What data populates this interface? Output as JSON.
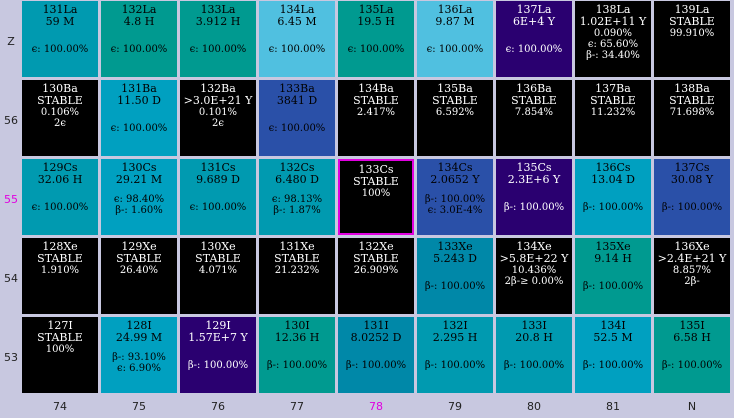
{
  "row_labels": [
    "Z",
    "56",
    "55",
    "54",
    "53"
  ],
  "row_highlight": 2,
  "col_labels": [
    "74",
    "75",
    "76",
    "77",
    "78",
    "79",
    "80",
    "81",
    "N"
  ],
  "col_highlight": 4,
  "rows": [
    [
      {
        "name": "131La",
        "half": "59 M",
        "lines": [
          "",
          "",
          "ϵ: 100.00%"
        ],
        "bg": "#009ab0",
        "fg": "lt"
      },
      {
        "name": "132La",
        "half": "4.8 H",
        "lines": [
          "",
          "",
          "ϵ: 100.00%"
        ],
        "bg": "#009a90",
        "fg": "lt"
      },
      {
        "name": "133La",
        "half": "3.912 H",
        "lines": [
          "",
          "",
          "ϵ: 100.00%"
        ],
        "bg": "#009a90",
        "fg": "lt"
      },
      {
        "name": "134La",
        "half": "6.45 M",
        "lines": [
          "",
          "",
          "ϵ: 100.00%"
        ],
        "bg": "#50c0e0",
        "fg": "lt"
      },
      {
        "name": "135La",
        "half": "19.5 H",
        "lines": [
          "",
          "",
          "ϵ: 100.00%"
        ],
        "bg": "#009a90",
        "fg": "lt"
      },
      {
        "name": "136La",
        "half": "9.87 M",
        "lines": [
          "",
          "",
          "ϵ: 100.00%"
        ],
        "bg": "#50c0e0",
        "fg": "lt"
      },
      {
        "name": "137La",
        "half": "6E+4 Y",
        "lines": [
          "",
          "",
          "ϵ: 100.00%"
        ],
        "bg": "#2a0070",
        "fg": "dk"
      },
      {
        "name": "138La",
        "half": "1.02E+11 Y",
        "lines": [
          "0.090%",
          "ϵ: 65.60%",
          "β-: 34.40%"
        ],
        "bg": "#000000",
        "fg": "dk"
      },
      {
        "name": "139La",
        "half": "STABLE",
        "lines": [
          "99.910%"
        ],
        "bg": "#000000",
        "fg": "dk"
      }
    ],
    [
      {
        "name": "130Ba",
        "half": "STABLE",
        "lines": [
          "0.106%",
          "2ϵ"
        ],
        "bg": "#000000",
        "fg": "dk"
      },
      {
        "name": "131Ba",
        "half": "11.50 D",
        "lines": [
          "",
          "",
          "ϵ: 100.00%"
        ],
        "bg": "#00a0c0",
        "fg": "lt"
      },
      {
        "name": "132Ba",
        "half": ">3.0E+21 Y",
        "lines": [
          "0.101%",
          "2ϵ"
        ],
        "bg": "#000000",
        "fg": "dk"
      },
      {
        "name": "133Ba",
        "half": "3841 D",
        "lines": [
          "",
          "",
          "ϵ: 100.00%"
        ],
        "bg": "#2a50a8",
        "fg": "lt"
      },
      {
        "name": "134Ba",
        "half": "STABLE",
        "lines": [
          "2.417%"
        ],
        "bg": "#000000",
        "fg": "dk"
      },
      {
        "name": "135Ba",
        "half": "STABLE",
        "lines": [
          "6.592%"
        ],
        "bg": "#000000",
        "fg": "dk"
      },
      {
        "name": "136Ba",
        "half": "STABLE",
        "lines": [
          "7.854%"
        ],
        "bg": "#000000",
        "fg": "dk"
      },
      {
        "name": "137Ba",
        "half": "STABLE",
        "lines": [
          "11.232%"
        ],
        "bg": "#000000",
        "fg": "dk"
      },
      {
        "name": "138Ba",
        "half": "STABLE",
        "lines": [
          "71.698%"
        ],
        "bg": "#000000",
        "fg": "dk"
      }
    ],
    [
      {
        "name": "129Cs",
        "half": "32.06 H",
        "lines": [
          "",
          "",
          "ϵ: 100.00%"
        ],
        "bg": "#009ab0",
        "fg": "lt"
      },
      {
        "name": "130Cs",
        "half": "29.21 M",
        "lines": [
          "",
          "ϵ: 98.40%",
          "β-: 1.60%"
        ],
        "bg": "#00a0c0",
        "fg": "lt"
      },
      {
        "name": "131Cs",
        "half": "9.689 D",
        "lines": [
          "",
          "",
          "ϵ: 100.00%"
        ],
        "bg": "#009ab0",
        "fg": "lt"
      },
      {
        "name": "132Cs",
        "half": "6.480 D",
        "lines": [
          "",
          "ϵ: 98.13%",
          "β-: 1.87%"
        ],
        "bg": "#009ab0",
        "fg": "lt"
      },
      {
        "name": "133Cs",
        "half": "STABLE",
        "lines": [
          "100%"
        ],
        "bg": "#000000",
        "fg": "dk",
        "sel": true
      },
      {
        "name": "134Cs",
        "half": "2.0652 Y",
        "lines": [
          "",
          "β-: 100.00%",
          "ϵ: 3.0E-4%"
        ],
        "bg": "#2a50a8",
        "fg": "lt"
      },
      {
        "name": "135Cs",
        "half": "2.3E+6 Y",
        "lines": [
          "",
          "",
          "β-: 100.00%"
        ],
        "bg": "#2a0070",
        "fg": "dk"
      },
      {
        "name": "136Cs",
        "half": "13.04 D",
        "lines": [
          "",
          "",
          "β-: 100.00%"
        ],
        "bg": "#00a0c0",
        "fg": "lt"
      },
      {
        "name": "137Cs",
        "half": "30.08 Y",
        "lines": [
          "",
          "",
          "β-: 100.00%"
        ],
        "bg": "#2a50a8",
        "fg": "lt"
      }
    ],
    [
      {
        "name": "128Xe",
        "half": "STABLE",
        "lines": [
          "1.910%"
        ],
        "bg": "#000000",
        "fg": "dk"
      },
      {
        "name": "129Xe",
        "half": "STABLE",
        "lines": [
          "26.40%"
        ],
        "bg": "#000000",
        "fg": "dk"
      },
      {
        "name": "130Xe",
        "half": "STABLE",
        "lines": [
          "4.071%"
        ],
        "bg": "#000000",
        "fg": "dk"
      },
      {
        "name": "131Xe",
        "half": "STABLE",
        "lines": [
          "21.232%"
        ],
        "bg": "#000000",
        "fg": "dk"
      },
      {
        "name": "132Xe",
        "half": "STABLE",
        "lines": [
          "26.909%"
        ],
        "bg": "#000000",
        "fg": "dk"
      },
      {
        "name": "133Xe",
        "half": "5.243 D",
        "lines": [
          "",
          "",
          "β-: 100.00%"
        ],
        "bg": "#0088a8",
        "fg": "lt"
      },
      {
        "name": "134Xe",
        "half": ">5.8E+22 Y",
        "lines": [
          "10.436%",
          "2β-≥ 0.00%"
        ],
        "bg": "#000000",
        "fg": "dk"
      },
      {
        "name": "135Xe",
        "half": "9.14 H",
        "lines": [
          "",
          "",
          "β-: 100.00%"
        ],
        "bg": "#009a90",
        "fg": "lt"
      },
      {
        "name": "136Xe",
        "half": ">2.4E+21 Y",
        "lines": [
          "8.857%",
          "2β-"
        ],
        "bg": "#000000",
        "fg": "dk"
      }
    ],
    [
      {
        "name": "127I",
        "half": "STABLE",
        "lines": [
          "100%"
        ],
        "bg": "#000000",
        "fg": "dk"
      },
      {
        "name": "128I",
        "half": "24.99 M",
        "lines": [
          "",
          "β-: 93.10%",
          "ϵ: 6.90%"
        ],
        "bg": "#00a0c0",
        "fg": "lt"
      },
      {
        "name": "129I",
        "half": "1.57E+7 Y",
        "lines": [
          "",
          "",
          "β-: 100.00%"
        ],
        "bg": "#2a0070",
        "fg": "dk"
      },
      {
        "name": "130I",
        "half": "12.36 H",
        "lines": [
          "",
          "",
          "β-: 100.00%"
        ],
        "bg": "#009a90",
        "fg": "lt"
      },
      {
        "name": "131I",
        "half": "8.0252 D",
        "lines": [
          "",
          "",
          "β-: 100.00%"
        ],
        "bg": "#0088a8",
        "fg": "lt"
      },
      {
        "name": "132I",
        "half": "2.295 H",
        "lines": [
          "",
          "",
          "β-: 100.00%"
        ],
        "bg": "#009ab0",
        "fg": "lt"
      },
      {
        "name": "133I",
        "half": "20.8 H",
        "lines": [
          "",
          "",
          "β-: 100.00%"
        ],
        "bg": "#009ab0",
        "fg": "lt"
      },
      {
        "name": "134I",
        "half": "52.5 M",
        "lines": [
          "",
          "",
          "β-: 100.00%"
        ],
        "bg": "#00a0c0",
        "fg": "lt"
      },
      {
        "name": "135I",
        "half": "6.58 H",
        "lines": [
          "",
          "",
          "β-: 100.00%"
        ],
        "bg": "#009a90",
        "fg": "lt"
      }
    ]
  ]
}
